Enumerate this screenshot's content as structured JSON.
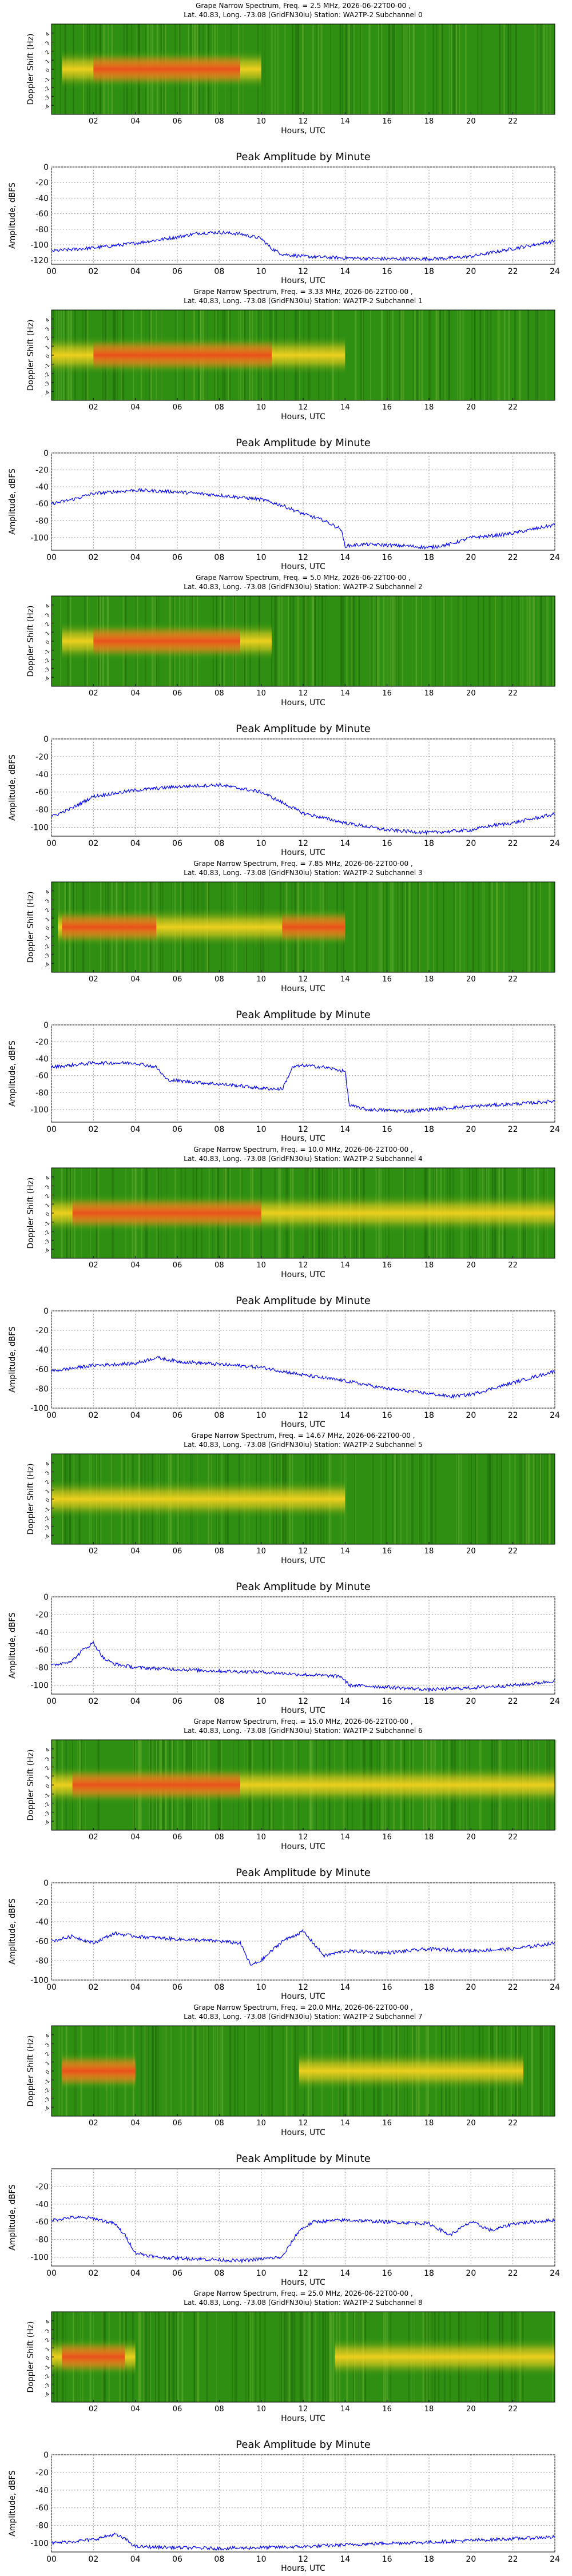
{
  "station_line": "Lat.  40.83, Long. -73.08 (GridFN30iu) Station: WA2TP-2 Subchannel",
  "spectrum_xlabel": "Hours, UTC",
  "spectrum_ylabel": "Doppler Shift (Hz)",
  "amp_title": "Peak Amplitude by Minute",
  "amp_xlabel": "Hours, UTC",
  "amp_ylabel": "Amplitude, dBFS",
  "spectrum_xticks": [
    "02",
    "04",
    "06",
    "08",
    "10",
    "12",
    "14",
    "16",
    "18",
    "20",
    "22"
  ],
  "spectrum_yticks": [
    "4",
    "3",
    "2",
    "1",
    "0",
    "-1",
    "-2",
    "-3",
    "-4"
  ],
  "amp_xticks": [
    "00",
    "02",
    "04",
    "06",
    "08",
    "10",
    "12",
    "14",
    "16",
    "18",
    "20",
    "22",
    "24"
  ],
  "colors": {
    "spectrum_bg": "#2f8f12",
    "spectrum_band": "#f5d21e",
    "spectrum_core": "#e8431a",
    "amp_line": "#0000ff"
  },
  "chart_data": [
    {
      "type": "heatmap",
      "subchannel": "0",
      "title": "Grape Narrow Spectrum, Freq. = 2.5 MHz, 2026-06-22T00-00 ,",
      "xlim": [
        0,
        24
      ],
      "ylim": [
        -5,
        5
      ],
      "band": {
        "start": 0.5,
        "end": 10,
        "core_start": 2,
        "core_end": 9
      }
    },
    {
      "type": "line",
      "subchannel": "0",
      "xlim": [
        0,
        24
      ],
      "ylim": [
        -125,
        0
      ],
      "yticks": [
        0,
        -20,
        -40,
        -60,
        -80,
        -100,
        -120
      ],
      "x": [
        0,
        2,
        4,
        6,
        7,
        8,
        9,
        10,
        10.5,
        11,
        12,
        13,
        14,
        16,
        18,
        19,
        20,
        21,
        22,
        23,
        24
      ],
      "y": [
        -108,
        -104,
        -98,
        -90,
        -85,
        -84,
        -86,
        -92,
        -105,
        -112,
        -115,
        -116,
        -117,
        -118,
        -118,
        -117,
        -115,
        -110,
        -105,
        -100,
        -95
      ]
    },
    {
      "type": "heatmap",
      "subchannel": "1",
      "title": "Grape Narrow Spectrum, Freq. = 3.33 MHz, 2026-06-22T00-00 ,",
      "xlim": [
        0,
        24
      ],
      "ylim": [
        -5,
        5
      ],
      "band": {
        "start": 0,
        "end": 14,
        "core_start": 2,
        "core_end": 10.5
      }
    },
    {
      "type": "line",
      "subchannel": "1",
      "xlim": [
        0,
        24
      ],
      "ylim": [
        -115,
        0
      ],
      "yticks": [
        0,
        -20,
        -40,
        -60,
        -80,
        -100
      ],
      "x": [
        0,
        1,
        2,
        4,
        6,
        8,
        10,
        11,
        12,
        13,
        13.8,
        14,
        15,
        17,
        18,
        19,
        20,
        21,
        22,
        23,
        24
      ],
      "y": [
        -60,
        -55,
        -48,
        -44,
        -46,
        -50,
        -55,
        -62,
        -72,
        -80,
        -90,
        -110,
        -108,
        -110,
        -112,
        -108,
        -100,
        -98,
        -95,
        -90,
        -85
      ]
    },
    {
      "type": "heatmap",
      "subchannel": "2",
      "title": "Grape Narrow Spectrum, Freq. = 5.0 MHz, 2026-06-22T00-00 ,",
      "xlim": [
        0,
        24
      ],
      "ylim": [
        -5,
        5
      ],
      "band": {
        "start": 0.5,
        "end": 10.5,
        "core_start": 2,
        "core_end": 9
      }
    },
    {
      "type": "line",
      "subchannel": "2",
      "xlim": [
        0,
        24
      ],
      "ylim": [
        -110,
        0
      ],
      "yticks": [
        0,
        -20,
        -40,
        -60,
        -80,
        -100
      ],
      "x": [
        0,
        1,
        2,
        4,
        6,
        8,
        10,
        11,
        12,
        14,
        16,
        18,
        20,
        21,
        22,
        23,
        24
      ],
      "y": [
        -88,
        -78,
        -65,
        -58,
        -54,
        -52,
        -60,
        -72,
        -84,
        -95,
        -103,
        -106,
        -103,
        -98,
        -95,
        -90,
        -85
      ]
    },
    {
      "type": "heatmap",
      "subchannel": "3",
      "title": "Grape Narrow Spectrum, Freq. = 7.85 MHz, 2026-06-22T00-00 ,",
      "xlim": [
        0,
        24
      ],
      "ylim": [
        -5,
        5
      ],
      "band": {
        "start": 0.3,
        "end": 14,
        "core_start": 0.5,
        "core_end": 5,
        "core2_start": 11,
        "core2_end": 14
      }
    },
    {
      "type": "line",
      "subchannel": "3",
      "xlim": [
        0,
        24
      ],
      "ylim": [
        -115,
        0
      ],
      "yticks": [
        0,
        -20,
        -40,
        -60,
        -80,
        -100
      ],
      "x": [
        0,
        2,
        4,
        5,
        5.5,
        7,
        9,
        10,
        11,
        11.5,
        12,
        13,
        14,
        14.2,
        15,
        17,
        19,
        21,
        23,
        24
      ],
      "y": [
        -50,
        -45,
        -45,
        -50,
        -65,
        -68,
        -72,
        -75,
        -76,
        -50,
        -48,
        -50,
        -55,
        -95,
        -100,
        -102,
        -98,
        -95,
        -92,
        -90
      ]
    },
    {
      "type": "heatmap",
      "subchannel": "4",
      "title": "Grape Narrow Spectrum, Freq. = 10.0 MHz, 2026-06-22T00-00 ,",
      "xlim": [
        0,
        24
      ],
      "ylim": [
        -5,
        5
      ],
      "band": {
        "start": 0,
        "end": 24,
        "core_start": 1,
        "core_end": 10
      }
    },
    {
      "type": "line",
      "subchannel": "4",
      "xlim": [
        0,
        24
      ],
      "ylim": [
        -100,
        0
      ],
      "yticks": [
        0,
        -20,
        -40,
        -60,
        -80,
        -100
      ],
      "x": [
        0,
        2,
        4,
        5,
        6,
        8,
        10,
        12,
        14,
        16,
        18,
        19,
        20,
        21,
        22,
        23,
        24
      ],
      "y": [
        -62,
        -56,
        -54,
        -48,
        -52,
        -55,
        -58,
        -66,
        -72,
        -80,
        -85,
        -88,
        -86,
        -80,
        -74,
        -68,
        -62
      ]
    },
    {
      "type": "heatmap",
      "subchannel": "5",
      "title": "Grape Narrow Spectrum, Freq. = 14.67 MHz, 2026-06-22T00-00 ,",
      "xlim": [
        0,
        24
      ],
      "ylim": [
        -5,
        5
      ],
      "band": {
        "start": 0,
        "end": 14,
        "core_start": 0,
        "core_end": 0
      }
    },
    {
      "type": "line",
      "subchannel": "5",
      "xlim": [
        0,
        24
      ],
      "ylim": [
        -110,
        0
      ],
      "yticks": [
        0,
        -20,
        -40,
        -60,
        -80,
        -100
      ],
      "x": [
        0,
        1,
        1.5,
        2,
        2.5,
        3,
        4,
        6,
        8,
        10,
        12,
        13.8,
        14.2,
        16,
        18,
        20,
        22,
        23,
        24
      ],
      "y": [
        -78,
        -72,
        -60,
        -52,
        -70,
        -76,
        -80,
        -82,
        -84,
        -85,
        -88,
        -90,
        -100,
        -102,
        -105,
        -103,
        -100,
        -98,
        -95
      ]
    },
    {
      "type": "heatmap",
      "subchannel": "6",
      "title": "Grape Narrow Spectrum, Freq. = 15.0 MHz, 2026-06-22T00-00 ,",
      "xlim": [
        0,
        24
      ],
      "ylim": [
        -5,
        5
      ],
      "band": {
        "start": 0,
        "end": 24,
        "core_start": 1,
        "core_end": 9
      }
    },
    {
      "type": "line",
      "subchannel": "6",
      "xlim": [
        0,
        24
      ],
      "ylim": [
        -100,
        0
      ],
      "yticks": [
        0,
        -20,
        -40,
        -60,
        -80,
        -100
      ],
      "x": [
        0,
        1,
        2,
        3,
        4,
        6,
        8,
        9,
        9.5,
        10,
        11,
        12,
        13,
        14,
        16,
        18,
        20,
        22,
        24
      ],
      "y": [
        -60,
        -55,
        -62,
        -52,
        -55,
        -58,
        -60,
        -62,
        -85,
        -80,
        -60,
        -50,
        -75,
        -70,
        -72,
        -68,
        -70,
        -68,
        -62
      ]
    },
    {
      "type": "heatmap",
      "subchannel": "7",
      "title": "Grape Narrow Spectrum, Freq. = 20.0 MHz, 2026-06-22T00-00 ,",
      "xlim": [
        0,
        24
      ],
      "ylim": [
        -5,
        5
      ],
      "band": {
        "start": 0.5,
        "end": 4,
        "core_start": 0.5,
        "core_end": 4,
        "band2_start": 11.8,
        "band2_end": 22.5
      }
    },
    {
      "type": "line",
      "subchannel": "7",
      "xlim": [
        0,
        24
      ],
      "ylim": [
        -110,
        0
      ],
      "yticks": [
        -20,
        -40,
        -60,
        -80,
        -100
      ],
      "x": [
        0,
        1,
        2,
        3,
        3.5,
        4,
        5,
        7,
        9,
        11,
        11.8,
        12.5,
        14,
        16,
        18,
        19,
        20,
        21,
        22,
        23,
        24
      ],
      "y": [
        -58,
        -55,
        -56,
        -62,
        -75,
        -95,
        -100,
        -102,
        -104,
        -100,
        -70,
        -60,
        -58,
        -60,
        -62,
        -75,
        -60,
        -70,
        -62,
        -60,
        -58
      ]
    },
    {
      "type": "heatmap",
      "subchannel": "8",
      "title": "Grape Narrow Spectrum, Freq. = 25.0 MHz, 2026-06-22T00-00 ,",
      "xlim": [
        0,
        24
      ],
      "ylim": [
        -5,
        5
      ],
      "band": {
        "start": 0,
        "end": 4,
        "core_start": 0.5,
        "core_end": 3.5,
        "band2_start": 13.5,
        "band2_end": 24
      }
    },
    {
      "type": "line",
      "subchannel": "8",
      "xlim": [
        0,
        24
      ],
      "ylim": [
        -110,
        0
      ],
      "yticks": [
        0,
        -20,
        -40,
        -60,
        -80,
        -100
      ],
      "x": [
        0,
        1,
        2,
        3,
        3.5,
        4,
        6,
        8,
        10,
        12,
        14,
        16,
        18,
        20,
        22,
        24
      ],
      "y": [
        -100,
        -98,
        -96,
        -90,
        -95,
        -104,
        -105,
        -106,
        -105,
        -104,
        -102,
        -100,
        -99,
        -97,
        -95,
        -93
      ]
    }
  ]
}
